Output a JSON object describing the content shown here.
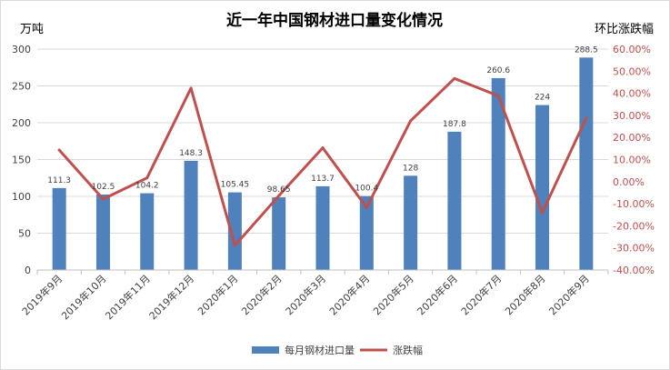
{
  "chart_data": {
    "type": "bar",
    "title": "近一年中国钢材进口量变化情况",
    "ylabel_left": "万吨",
    "ylabel_right": "环比涨跌幅",
    "ylim_left": [
      0,
      300
    ],
    "yticks_left": [
      "0",
      "50",
      "100",
      "150",
      "200",
      "250",
      "300"
    ],
    "ylim_right": [
      -40,
      60
    ],
    "yticks_right": [
      "-40.00%",
      "-30.00%",
      "-20.00%",
      "-10.00%",
      "0.00%",
      "10.00%",
      "20.00%",
      "30.00%",
      "40.00%",
      "50.00%",
      "60.00%"
    ],
    "categories": [
      "2019年9月",
      "2019年10月",
      "2019年11月",
      "2019年12月",
      "2020年1月",
      "2020年2月",
      "2020年3月",
      "2020年4月",
      "2020年5月",
      "2020年6月",
      "2020年7月",
      "2020年8月",
      "2020年9月"
    ],
    "series": [
      {
        "name": "每月钢材进口量",
        "type": "bar",
        "axis": "left",
        "color": "#4f81bd",
        "values": [
          111.3,
          102.5,
          104.2,
          148.3,
          105.45,
          98.65,
          113.7,
          100.4,
          128,
          187.8,
          260.6,
          224,
          288.5
        ],
        "labels": [
          "111.3",
          "102.5",
          "104.2",
          "148.3",
          "105.45",
          "98.65",
          "113.7",
          "100.4",
          "128",
          "187.8",
          "260.6",
          "224",
          "288.5"
        ]
      },
      {
        "name": "涨跌幅",
        "type": "line",
        "axis": "right",
        "color": "#c0504d",
        "values": [
          14.3,
          -7.9,
          1.7,
          42.3,
          -28.9,
          -6.4,
          15.3,
          -11.7,
          27.5,
          46.7,
          38.8,
          -14.0,
          28.8
        ]
      }
    ],
    "legend_position": "bottom",
    "grid": true
  }
}
